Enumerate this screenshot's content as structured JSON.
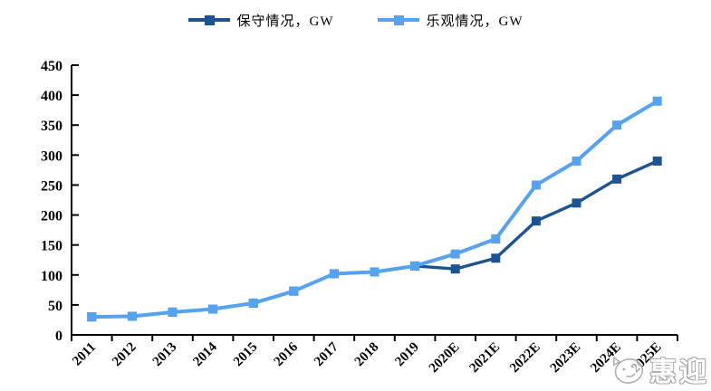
{
  "watermark": {
    "text": "惠迎"
  },
  "chart_data": {
    "type": "line",
    "title": "",
    "xlabel": "",
    "ylabel": "",
    "categories": [
      "2011",
      "2012",
      "2013",
      "2014",
      "2015",
      "2016",
      "2017",
      "2018",
      "2019",
      "2020E",
      "2021E",
      "2022E",
      "2023E",
      "2024E",
      "2025E"
    ],
    "series": [
      {
        "name": "保守情况，GW",
        "color": "#1B5393",
        "values": [
          30,
          31,
          38,
          43,
          53,
          73,
          102,
          105,
          115,
          110,
          128,
          190,
          220,
          260,
          290
        ]
      },
      {
        "name": "乐观情况，GW",
        "color": "#55A2F0",
        "values": [
          30,
          31,
          38,
          43,
          53,
          73,
          102,
          105,
          115,
          135,
          160,
          250,
          290,
          350,
          390
        ]
      }
    ],
    "ylim": [
      0,
      450
    ],
    "ytick_step": 50,
    "grid": false,
    "legend_position": "top",
    "marker": "square",
    "axis_color": "#000000"
  }
}
